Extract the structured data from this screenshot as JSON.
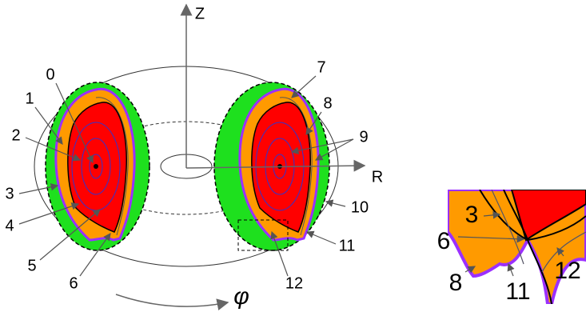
{
  "axes": {
    "z": "Z",
    "r": "R",
    "phi": "φ"
  },
  "labels": [
    "0",
    "1",
    "2",
    "3",
    "4",
    "5",
    "6",
    "7",
    "8",
    "9",
    "10",
    "11",
    "12"
  ],
  "inset_labels": [
    "3",
    "6",
    "8",
    "11",
    "12"
  ]
}
